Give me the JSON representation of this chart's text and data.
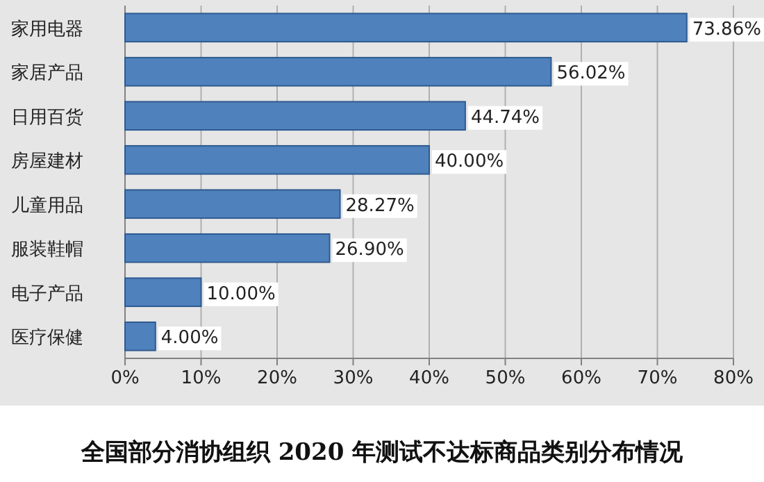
{
  "chart_data": {
    "type": "bar",
    "orientation": "horizontal",
    "title": "全国部分消协组织 2020 年测试不达标商品类别分布情况",
    "categories": [
      "家用电器",
      "家居产品",
      "日用百货",
      "房屋建材",
      "儿童用品",
      "服装鞋帽",
      "电子产品",
      "医疗保健"
    ],
    "values": [
      73.86,
      56.02,
      44.74,
      40.0,
      28.27,
      26.9,
      10.0,
      4.0
    ],
    "value_labels": [
      "73.86%",
      "56.02%",
      "44.74%",
      "40.00%",
      "28.27%",
      "26.90%",
      "10.00%",
      "4.00%"
    ],
    "color": "#4f81bd",
    "xlim": [
      0,
      80
    ],
    "xticks": [
      {
        "value": 0,
        "label": "0%"
      },
      {
        "value": 10,
        "label": "10%"
      },
      {
        "value": 20,
        "label": "20%"
      },
      {
        "value": 30,
        "label": "30%"
      },
      {
        "value": 40,
        "label": "40%"
      },
      {
        "value": 50,
        "label": "50%"
      },
      {
        "value": 60,
        "label": "60%"
      },
      {
        "value": 70,
        "label": "70%"
      },
      {
        "value": 80,
        "label": "80%"
      }
    ],
    "grid": "x"
  }
}
